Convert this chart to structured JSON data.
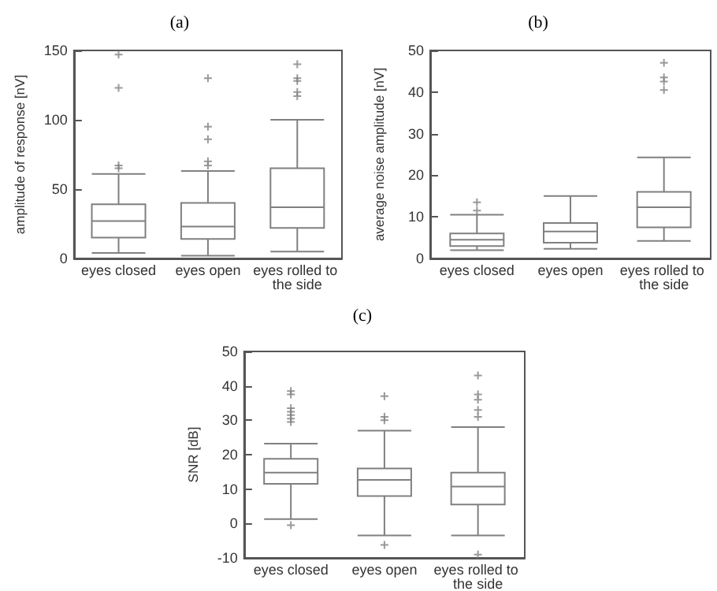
{
  "chart_data": [
    {
      "type": "box",
      "title": "(a)",
      "ylabel": "amplitude of response [nV]",
      "categories": [
        "eyes closed",
        "eyes open",
        "eyes rolled to the side"
      ],
      "color": "#808080",
      "ylim": [
        0,
        150
      ],
      "yticks": [
        0,
        50,
        100,
        150
      ],
      "boxes": [
        {
          "low": 4,
          "q1": 15,
          "median": 27,
          "q3": 39,
          "high": 61,
          "outliers": [
            65,
            67,
            123,
            147
          ]
        },
        {
          "low": 2,
          "q1": 14,
          "median": 23,
          "q3": 40,
          "high": 63,
          "outliers": [
            67,
            70,
            86,
            95,
            130
          ]
        },
        {
          "low": 5,
          "q1": 22,
          "median": 37,
          "q3": 65,
          "high": 100,
          "outliers": [
            117,
            120,
            128,
            130,
            140
          ]
        }
      ]
    },
    {
      "type": "box",
      "title": "(b)",
      "ylabel": "average noise amplitude [nV]",
      "categories": [
        "eyes closed",
        "eyes open",
        "eyes rolled to the side"
      ],
      "color": "#808080",
      "ylim": [
        0,
        50
      ],
      "yticks": [
        0,
        10,
        20,
        30,
        40,
        50
      ],
      "boxes": [
        {
          "low": 2,
          "q1": 3,
          "median": 4.5,
          "q3": 6,
          "high": 10.5,
          "outliers": [
            11.5,
            13.5
          ]
        },
        {
          "low": 2.3,
          "q1": 3.8,
          "median": 6.5,
          "q3": 8.5,
          "high": 15
        },
        {
          "low": 4.2,
          "q1": 7.5,
          "median": 12.3,
          "q3": 16,
          "high": 24.3,
          "outliers": [
            40.5,
            42.5,
            43.5,
            47
          ]
        }
      ]
    },
    {
      "type": "box",
      "title": "(c)",
      "ylabel": "SNR [dB]",
      "categories": [
        "eyes closed",
        "eyes open",
        "eyes rolled to the side"
      ],
      "color": "#808080",
      "ylim": [
        -10,
        50
      ],
      "yticks": [
        -10,
        0,
        10,
        20,
        30,
        40,
        50
      ],
      "boxes": [
        {
          "low": 1.3,
          "q1": 11.5,
          "median": 14.8,
          "q3": 18.8,
          "high": 23.2,
          "outliers": [
            -0.5,
            29.5,
            30.5,
            31.5,
            32.5,
            33.5,
            37.5,
            38.5
          ]
        },
        {
          "low": -3.5,
          "q1": 8,
          "median": 12.7,
          "q3": 16,
          "high": 27,
          "outliers": [
            -6.2,
            30,
            31,
            37
          ]
        },
        {
          "low": -3.5,
          "q1": 5.5,
          "median": 10.7,
          "q3": 14.8,
          "high": 28,
          "outliers": [
            -9,
            31,
            33,
            36,
            37.5,
            43
          ]
        }
      ]
    }
  ]
}
